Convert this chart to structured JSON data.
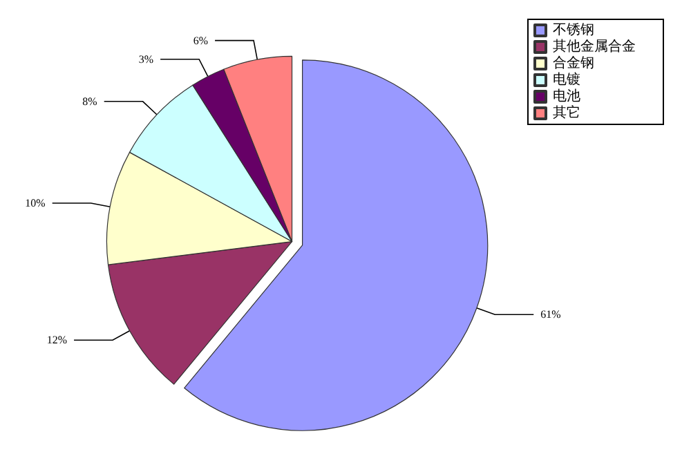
{
  "chart_data": {
    "type": "pie",
    "categories": [
      "不锈钢",
      "其他金属合金",
      "合金钢",
      "电镀",
      "电池",
      "其它"
    ],
    "values": [
      61,
      12,
      10,
      8,
      3,
      6
    ],
    "value_labels": [
      "61%",
      "12%",
      "10%",
      "8%",
      "3%",
      "6%"
    ],
    "colors": [
      "#9999ff",
      "#993366",
      "#ffffcc",
      "#ccffff",
      "#660066",
      "#ff8080"
    ],
    "legend": "top right"
  }
}
